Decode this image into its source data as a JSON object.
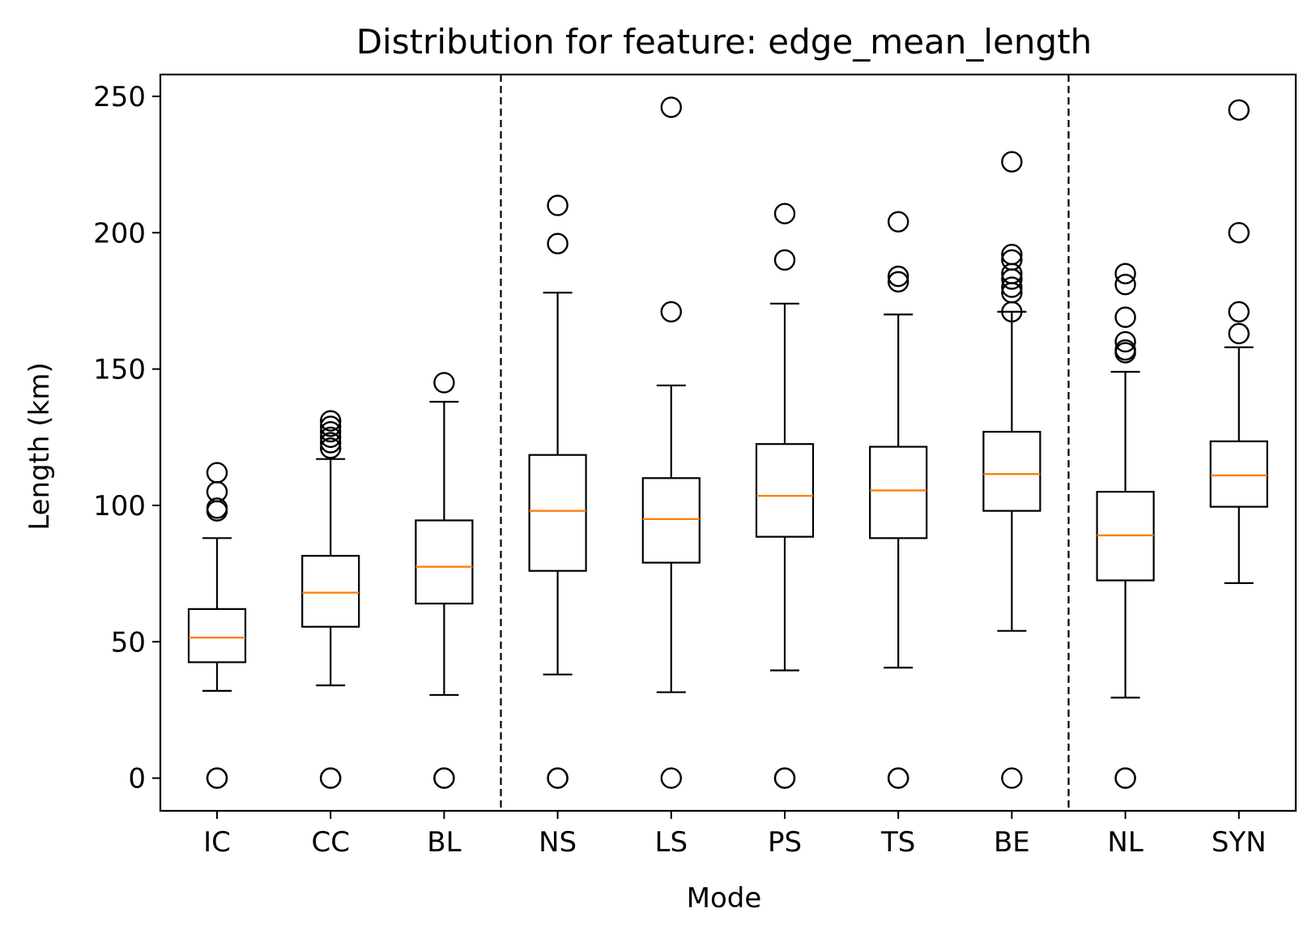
{
  "chart_data": {
    "type": "box",
    "title": "Distribution for feature: edge_mean_length",
    "xlabel": "Mode",
    "ylabel": "Length (km)",
    "ylim": [
      -12,
      258
    ],
    "yticks": [
      0,
      50,
      100,
      150,
      200,
      250
    ],
    "categories": [
      "IC",
      "CC",
      "BL",
      "NS",
      "LS",
      "PS",
      "TS",
      "BE",
      "NL",
      "SYN"
    ],
    "group_separators_after": [
      "BL",
      "BE"
    ],
    "grid": false,
    "colors": {
      "box": "#000000",
      "median": "#ff7f0e",
      "separator": "#000000"
    },
    "boxes": [
      {
        "label": "IC",
        "whisker_low": 32,
        "q1": 42.5,
        "median": 51.5,
        "q3": 62,
        "whisker_high": 88,
        "outliers": [
          0,
          0,
          98,
          99,
          105,
          112
        ]
      },
      {
        "label": "CC",
        "whisker_low": 34,
        "q1": 55.5,
        "median": 68,
        "q3": 81.5,
        "whisker_high": 117,
        "outliers": [
          0,
          0,
          121,
          123,
          125,
          127,
          129,
          131
        ]
      },
      {
        "label": "BL",
        "whisker_low": 30.5,
        "q1": 64,
        "median": 77.5,
        "q3": 94.5,
        "whisker_high": 138,
        "outliers": [
          0,
          0,
          145
        ]
      },
      {
        "label": "NS",
        "whisker_low": 38,
        "q1": 76,
        "median": 98,
        "q3": 118.5,
        "whisker_high": 178,
        "outliers": [
          0,
          0,
          196,
          210
        ]
      },
      {
        "label": "LS",
        "whisker_low": 31.5,
        "q1": 79,
        "median": 95,
        "q3": 110,
        "whisker_high": 144,
        "outliers": [
          0,
          171,
          246
        ]
      },
      {
        "label": "PS",
        "whisker_low": 39.5,
        "q1": 88.5,
        "median": 103.5,
        "q3": 122.5,
        "whisker_high": 174,
        "outliers": [
          0,
          0,
          190,
          207
        ]
      },
      {
        "label": "TS",
        "whisker_low": 40.5,
        "q1": 88,
        "median": 105.5,
        "q3": 121.5,
        "whisker_high": 170,
        "outliers": [
          0,
          0,
          182,
          184,
          204
        ]
      },
      {
        "label": "BE",
        "whisker_low": 54,
        "q1": 98,
        "median": 111.5,
        "q3": 127,
        "whisker_high": 171,
        "outliers": [
          0,
          171,
          178,
          180,
          183,
          185,
          190,
          192,
          226
        ]
      },
      {
        "label": "NL",
        "whisker_low": 29.5,
        "q1": 72.5,
        "median": 89,
        "q3": 105,
        "whisker_high": 149,
        "outliers": [
          0,
          0,
          156,
          157,
          160,
          169,
          181,
          185
        ]
      },
      {
        "label": "SYN",
        "whisker_low": 71.5,
        "q1": 99.5,
        "median": 111,
        "q3": 123.5,
        "whisker_high": 158,
        "outliers": [
          163,
          171,
          200,
          245
        ]
      }
    ]
  }
}
